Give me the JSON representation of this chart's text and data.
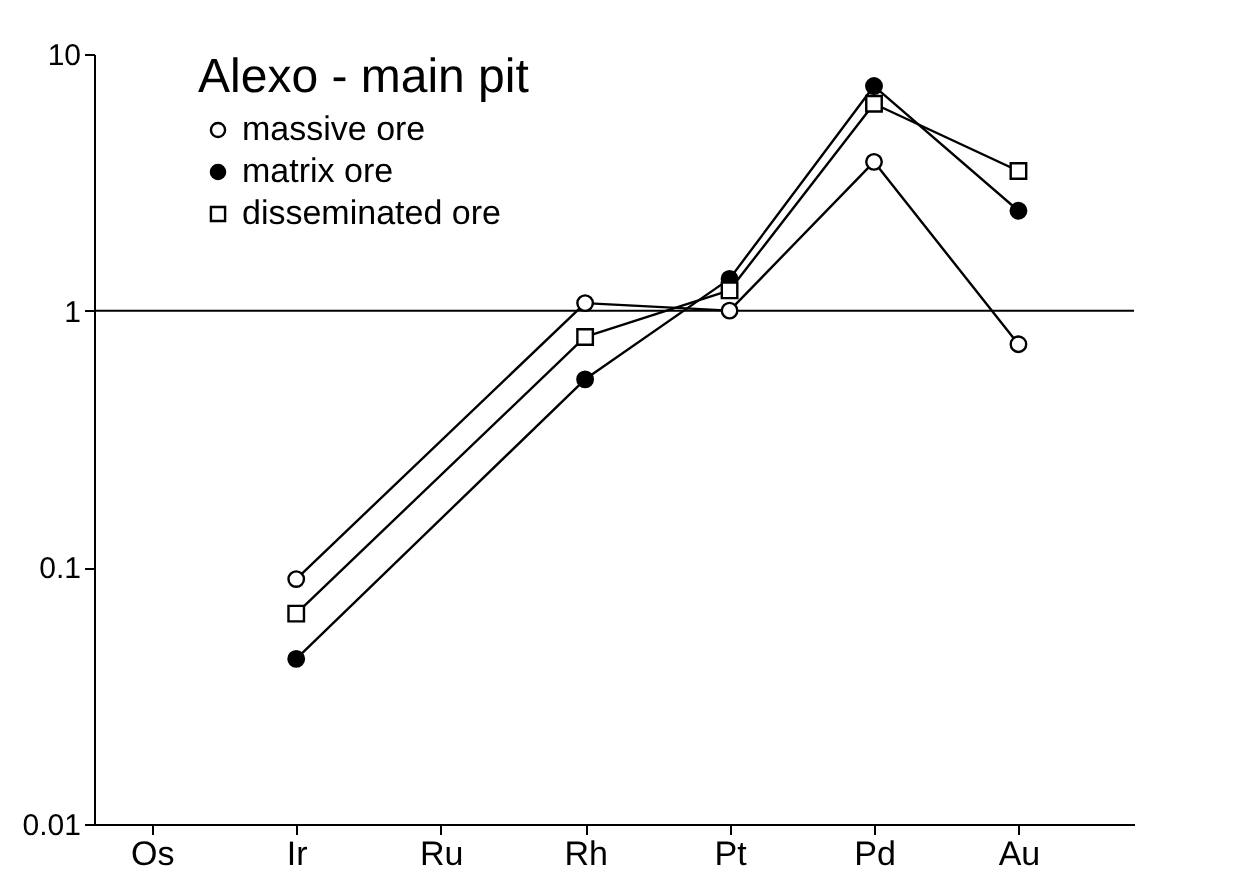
{
  "chart_data": {
    "type": "line",
    "legend_title": "Alexo - main pit",
    "categories": [
      "Os",
      "Ir",
      "Ru",
      "Rh",
      "Pt",
      "Pd",
      "Au"
    ],
    "series": [
      {
        "name": "massive ore",
        "color": "#000000",
        "marker": "circle",
        "values": [
          null,
          0.09,
          null,
          1.07,
          1.0,
          3.8,
          0.74
        ]
      },
      {
        "name": "matrix ore",
        "color": "#000000",
        "marker": "circle",
        "values": [
          null,
          0.044,
          null,
          0.54,
          1.33,
          7.5,
          2.45
        ]
      },
      {
        "name": "disseminated ore",
        "color": "#000000",
        "marker": "square",
        "values": [
          null,
          0.066,
          null,
          0.79,
          1.2,
          6.4,
          3.5
        ]
      }
    ],
    "log": true,
    "ylim": [
      0.01,
      10
    ],
    "yticks": [
      0.01,
      0.1,
      1,
      10
    ],
    "ref_lines": [
      {
        "axis": "y",
        "value": 1,
        "color": "#000000"
      }
    ],
    "legend": "top left",
    "grid": false,
    "line_style": "solid"
  }
}
